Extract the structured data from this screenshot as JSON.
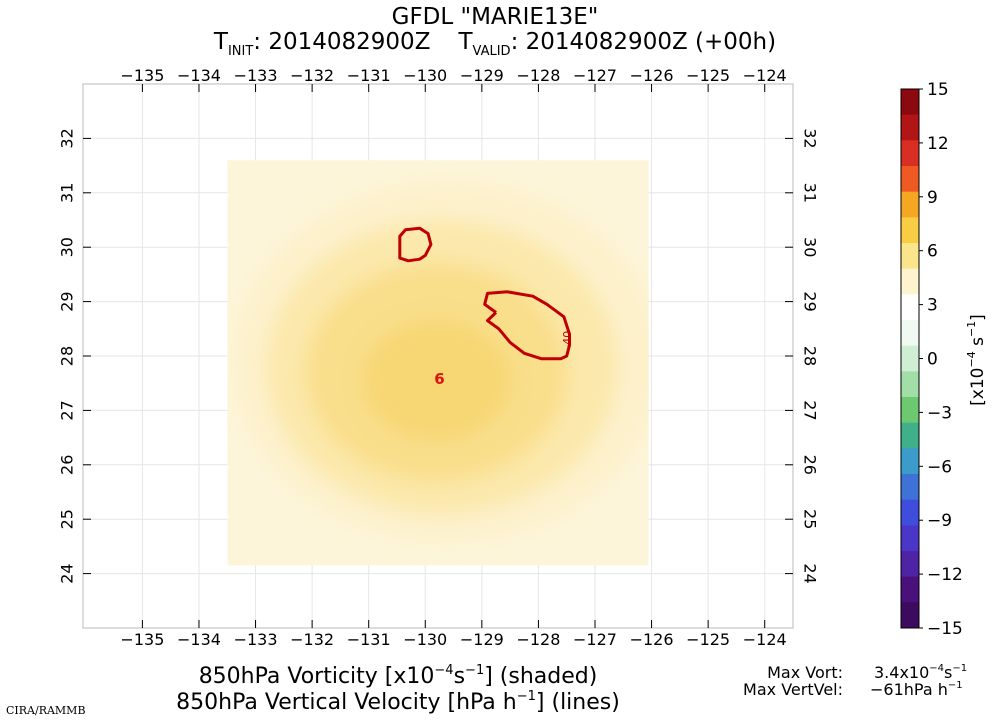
{
  "chart_data": {
    "type": "heatmap",
    "title": "GFDL \"MARIE13E\"",
    "subtitle": {
      "t_init_label": "T",
      "t_init_sub": "INIT",
      "t_init_value": ": 2014082900Z",
      "t_valid_label": "T",
      "t_valid_sub": "VALID",
      "t_valid_value": ": 2014082900Z (+00h)"
    },
    "lon_ticks": [
      -135,
      -134,
      -133,
      -132,
      -131,
      -130,
      -129,
      -128,
      -127,
      -126,
      -125,
      -124
    ],
    "lon_labels": [
      "−135",
      "−134",
      "−133",
      "−132",
      "−131",
      "−130",
      "−129",
      "−128",
      "−127",
      "−126",
      "−125",
      "−124"
    ],
    "lat_ticks": [
      24,
      25,
      26,
      27,
      28,
      29,
      30,
      31,
      32
    ],
    "lat_labels": [
      "24",
      "25",
      "26",
      "27",
      "28",
      "29",
      "30",
      "31",
      "32"
    ],
    "xlim": [
      -136.05,
      -123.5
    ],
    "ylim": [
      23.0,
      33.0
    ],
    "domain_box": {
      "lon": [
        -133.5,
        -126.05
      ],
      "lat": [
        24.15,
        31.6
      ]
    },
    "vorticity_field": {
      "center": {
        "lon": -129.8,
        "lat": 27.5
      },
      "max": 3.4,
      "levels": [
        {
          "value": 0.6,
          "rx": 3.8,
          "ry": 3.3,
          "cx": -129.6,
          "cy": 27.9,
          "color": "#fdf1cc"
        },
        {
          "value": 1.0,
          "rx": 3.1,
          "ry": 2.7,
          "cx": -129.7,
          "cy": 27.8,
          "color": "#fbe8ab"
        },
        {
          "value": 1.6,
          "rx": 2.3,
          "ry": 2.0,
          "cx": -129.8,
          "cy": 27.7,
          "color": "#f9de8b"
        },
        {
          "value": 2.4,
          "rx": 1.3,
          "ry": 1.1,
          "cx": -129.8,
          "cy": 27.55,
          "color": "#f7d773"
        }
      ],
      "base_color": "#fdf5d9"
    },
    "contour_lines": [
      {
        "name": "upper",
        "value": -40,
        "label": "",
        "points": [
          [
            -130.45,
            29.9
          ],
          [
            -130.45,
            30.2
          ],
          [
            -130.35,
            30.32
          ],
          [
            -130.1,
            30.35
          ],
          [
            -129.95,
            30.25
          ],
          [
            -129.9,
            30.05
          ],
          [
            -130.0,
            29.85
          ],
          [
            -130.1,
            29.78
          ],
          [
            -130.3,
            29.75
          ],
          [
            -130.45,
            29.8
          ],
          [
            -130.45,
            29.9
          ]
        ]
      },
      {
        "name": "east",
        "value": -40,
        "label": "-40",
        "points": [
          [
            -128.75,
            28.8
          ],
          [
            -128.95,
            28.95
          ],
          [
            -128.9,
            29.15
          ],
          [
            -128.55,
            29.18
          ],
          [
            -128.1,
            29.1
          ],
          [
            -127.85,
            28.95
          ],
          [
            -127.55,
            28.72
          ],
          [
            -127.45,
            28.4
          ],
          [
            -127.45,
            28.2
          ],
          [
            -127.5,
            28.0
          ],
          [
            -127.6,
            27.95
          ],
          [
            -127.95,
            27.95
          ],
          [
            -128.25,
            28.05
          ],
          [
            -128.5,
            28.25
          ],
          [
            -128.7,
            28.5
          ],
          [
            -128.9,
            28.65
          ],
          [
            -128.75,
            28.8
          ]
        ]
      }
    ],
    "center_marker": {
      "lon": -129.75,
      "lat": 27.6,
      "text": "6"
    },
    "colorbar": {
      "levels": [
        15,
        12,
        9,
        6,
        3,
        0,
        -3,
        -6,
        -9,
        -12,
        -15
      ],
      "labels": [
        "15",
        "12",
        "9",
        "6",
        "3",
        "0",
        "−3",
        "−6",
        "−9",
        "−12",
        "−15"
      ],
      "colors": [
        "#8b0a0f",
        "#b11515",
        "#d92e23",
        "#ef5a23",
        "#f5a623",
        "#f8cd44",
        "#fbe58a",
        "#fdf4cf",
        "#ffffff",
        "#f0faf0",
        "#cfeed4",
        "#a2dfa8",
        "#6cc96f",
        "#3fb08a",
        "#3b9ccc",
        "#3f72d6",
        "#3e4ddb",
        "#4a37c8",
        "#4f23a6",
        "#4a117a",
        "#3c0b5f"
      ],
      "unit_base": "[x10",
      "unit_exp": "−4",
      "unit_mid": " s",
      "unit_exp2": "−1",
      "unit_end": "]"
    },
    "footer": {
      "line1_a": "850hPa Vorticity [x10",
      "line1_exp1": "−4",
      "line1_b": "s",
      "line1_exp2": "−1",
      "line1_c": "] (shaded)",
      "line2_a": "850hPa Vertical Velocity [hPa h",
      "line2_exp": "−1",
      "line2_b": "] (lines)",
      "credit": "CIRA/RAMMB",
      "max_vort_label": "Max Vort:",
      "max_vort_value": "3.4x10",
      "max_vort_exp": "−4",
      "max_vort_unit": "s",
      "max_vort_exp2": "−1",
      "max_vv_label": "Max VertVel:",
      "max_vv_value": "−61hPa h",
      "max_vv_exp": "−1"
    }
  }
}
